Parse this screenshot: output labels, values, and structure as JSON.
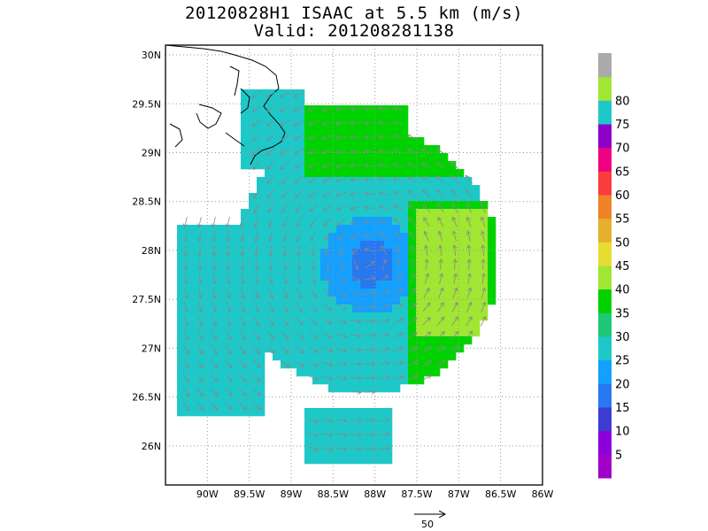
{
  "title": {
    "line1": "20120828H1 ISAAC at 5.5 km (m/s)",
    "line2": "Valid: 201208281138"
  },
  "chart_data": {
    "type": "heatmap",
    "title": "20120828H1 ISAAC at 5.5 km (m/s)",
    "subtitle": "Valid: 201208281138",
    "xlim": [
      -90.5,
      -86.0
    ],
    "ylim": [
      25.6,
      30.1
    ],
    "x_ticks": [
      "90W",
      "89.5W",
      "89W",
      "88.5W",
      "88W",
      "87.5W",
      "87W",
      "86.5W",
      "86W"
    ],
    "y_ticks": [
      "26N",
      "26.5N",
      "27N",
      "27.5N",
      "28N",
      "28.5N",
      "29N",
      "29.5N",
      "30N"
    ],
    "grid": true,
    "colorbar": {
      "levels": [
        {
          "label": "",
          "color": "#a000c8"
        },
        {
          "label": "5",
          "color": "#8c00dc"
        },
        {
          "label": "10",
          "color": "#3c3cd2"
        },
        {
          "label": "15",
          "color": "#2878f0"
        },
        {
          "label": "20",
          "color": "#14a0ff"
        },
        {
          "label": "25",
          "color": "#1ec8c8"
        },
        {
          "label": "30",
          "color": "#1ec878"
        },
        {
          "label": "35",
          "color": "#00d200"
        },
        {
          "label": "40",
          "color": "#a0e632"
        },
        {
          "label": "45",
          "color": "#e6dc32"
        },
        {
          "label": "50",
          "color": "#e6af2d"
        },
        {
          "label": "55",
          "color": "#f08228"
        },
        {
          "label": "60",
          "color": "#fa3c3c"
        },
        {
          "label": "65",
          "color": "#f00082"
        },
        {
          "label": "70",
          "color": "#8c00c8"
        },
        {
          "label": "75",
          "color": "#1ec8c8"
        },
        {
          "label": "80",
          "color": "#a0e632"
        },
        {
          "label": "",
          "color": "#aaaaaa"
        }
      ]
    },
    "wind_field": {
      "center_lon": -88.1,
      "center_lat": 27.9,
      "max_speed_ms": 38,
      "max_speed_lon": -87.2,
      "max_speed_lat": 28.4,
      "min_speed_ms": 10
    },
    "reference_vector": {
      "label": "50"
    }
  }
}
